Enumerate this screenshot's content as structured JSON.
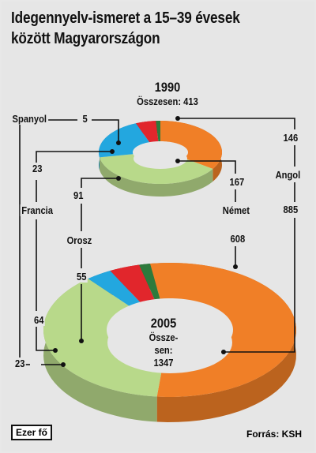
{
  "title_line1": "Idegennyelv-ismeret a 15–39 évesek",
  "title_line2": "között Magyarországon",
  "unit": "Ezer fő",
  "source": "Forrás: KSH",
  "colors": {
    "angol": "#f07f27",
    "nemet": "#b8d98a",
    "orosz": "#23a7df",
    "francia": "#e1262c",
    "spanyol": "#2d7a3c"
  },
  "chart_data": [
    {
      "type": "pie",
      "style": "3d-donut",
      "title": "1990",
      "total_label": "Összesen: 413",
      "total": 413,
      "categories": [
        "Angol",
        "Német",
        "Orosz",
        "Francia",
        "Spanyol"
      ],
      "values": [
        146,
        167,
        91,
        23,
        5
      ]
    },
    {
      "type": "pie",
      "style": "3d-donut",
      "title": "2005",
      "total_label_line1": "Össze-sen:",
      "total_label_line2": "1347",
      "total": 1347,
      "categories": [
        "Angol",
        "Német",
        "Orosz",
        "Francia",
        "Spanyol"
      ],
      "values": [
        885,
        608,
        55,
        64,
        23
      ]
    }
  ],
  "labels": {
    "spanyol": "Spanyol",
    "francia": "Francia",
    "orosz": "Orosz",
    "nemet": "Német",
    "angol": "Angol",
    "v1990": {
      "spanyol": "5",
      "francia": "23",
      "orosz": "91",
      "nemet": "167",
      "angol": "146"
    },
    "v2005": {
      "francia": "64",
      "spanyol": "23",
      "orosz": "55",
      "nemet": "608",
      "angol": "885"
    },
    "year1990": "1990",
    "year2005": "2005",
    "osszesen2005a": "Össze-",
    "osszesen2005b": "sen:",
    "total2005": "1347",
    "osszesen1990": "Összesen: 413"
  }
}
